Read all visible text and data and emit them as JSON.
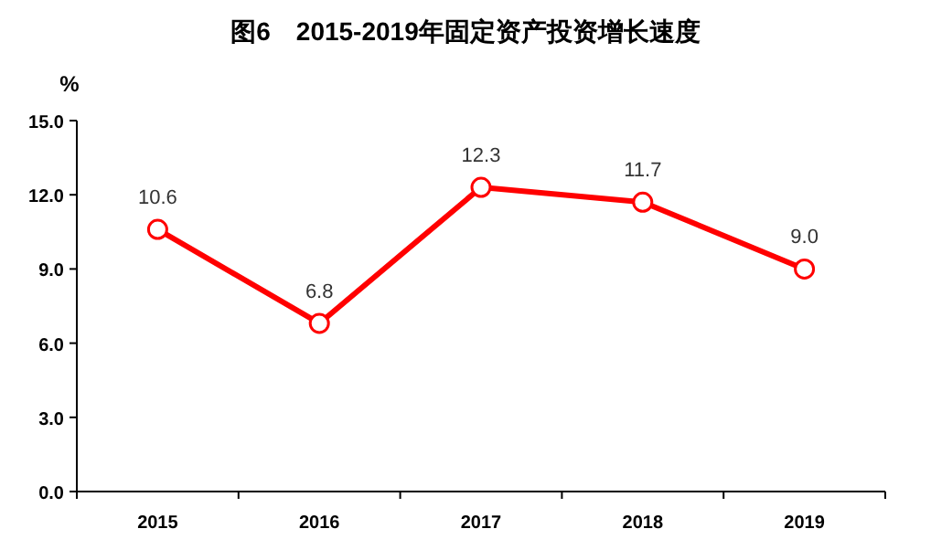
{
  "chart_data": {
    "type": "line",
    "title": "图6　2015-2019年固定资产投资增长速度",
    "ylabel": "%",
    "categories": [
      "2015",
      "2016",
      "2017",
      "2018",
      "2019"
    ],
    "values": [
      10.6,
      6.8,
      12.3,
      11.7,
      9.0
    ],
    "value_labels": [
      "10.6",
      "6.8",
      "12.3",
      "11.7",
      "9.0"
    ],
    "color": "#ff0000",
    "marker": "circle",
    "line_style": "solid",
    "ylim": [
      0,
      15
    ],
    "yticks": [
      {
        "value": 0,
        "label": "0.0"
      },
      {
        "value": 3,
        "label": "3.0"
      },
      {
        "value": 6,
        "label": "6.0"
      },
      {
        "value": 9,
        "label": "9.0"
      },
      {
        "value": 12,
        "label": "12.0"
      },
      {
        "value": 15,
        "label": "15.0"
      }
    ]
  }
}
